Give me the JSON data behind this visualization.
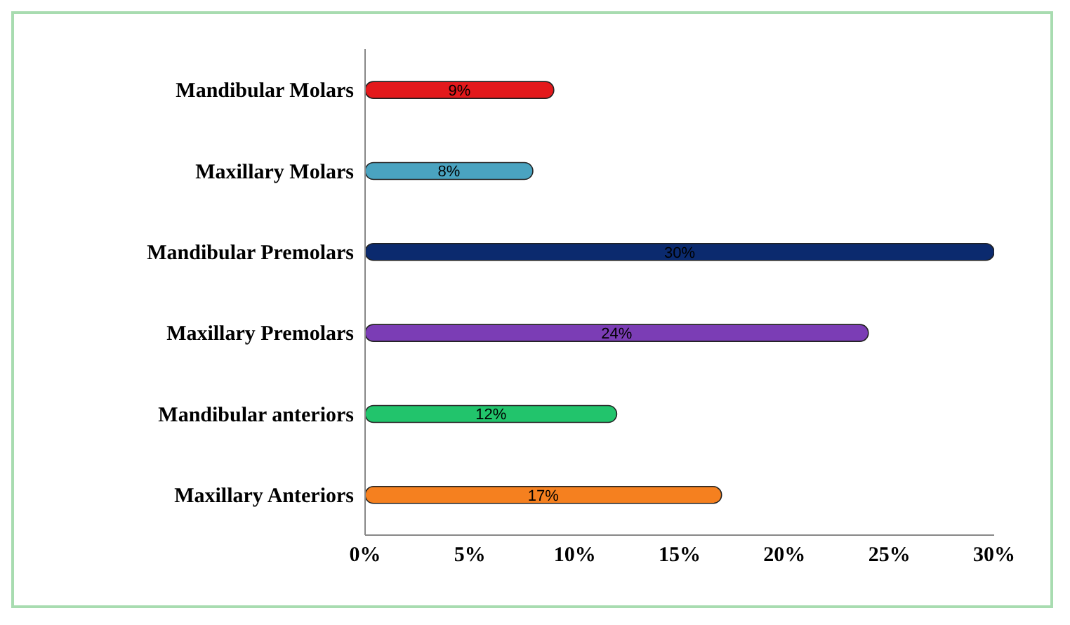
{
  "chart_data": {
    "type": "bar",
    "orientation": "horizontal",
    "categories": [
      "Mandibular Molars",
      "Maxillary Molars",
      "Mandibular Premolars",
      "Maxillary Premolars",
      "Mandibular anteriors",
      "Maxillary Anteriors"
    ],
    "values": [
      9,
      8,
      30,
      24,
      12,
      17
    ],
    "colors": [
      "#e3191c",
      "#4aa3c0",
      "#0b2a6e",
      "#7b3db5",
      "#22c46c",
      "#f5801f"
    ],
    "value_labels": [
      "9%",
      "8%",
      "30%",
      "24%",
      "12%",
      "17%"
    ],
    "xlim": [
      0,
      30
    ],
    "xticks": [
      {
        "value": 0,
        "label": "0%"
      },
      {
        "value": 5,
        "label": "5%"
      },
      {
        "value": 10,
        "label": "10%"
      },
      {
        "value": 15,
        "label": "15%"
      },
      {
        "value": 20,
        "label": "20%"
      },
      {
        "value": 25,
        "label": "25%"
      },
      {
        "value": 30,
        "label": "30%"
      }
    ],
    "grid": false,
    "legend": false
  }
}
